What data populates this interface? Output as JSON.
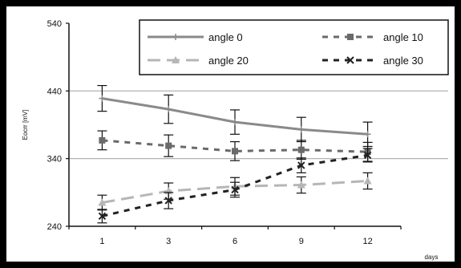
{
  "chart_data": {
    "type": "line",
    "x_categories": [
      "1",
      "3",
      "6",
      "9",
      "12"
    ],
    "xlabel": "days",
    "ylabel": "Eocrr [mV]",
    "y_ticks": [
      "240",
      "340",
      "440",
      "540"
    ],
    "ylim": [
      240,
      540
    ],
    "grid": "horizontal",
    "legend_position": "top-right",
    "series": [
      {
        "name": "angle 0",
        "color": "#8a8a8a",
        "dash": "solid",
        "marker": "plus",
        "values": [
          429,
          413,
          394,
          383,
          376
        ],
        "errors": [
          19,
          21,
          18,
          18,
          18
        ]
      },
      {
        "name": "angle 10",
        "color": "#6a6a6a",
        "dash": "short-dash",
        "marker": "square",
        "values": [
          367,
          359,
          351,
          353,
          350
        ],
        "errors": [
          14,
          16,
          14,
          14,
          14
        ]
      },
      {
        "name": "angle 20",
        "color": "#b6b6b6",
        "dash": "long-dash",
        "marker": "triangle",
        "values": [
          275,
          292,
          299,
          301,
          307
        ],
        "errors": [
          11,
          12,
          13,
          12,
          12
        ]
      },
      {
        "name": "angle 30",
        "color": "#222222",
        "dash": "short-dash",
        "marker": "x",
        "values": [
          255,
          278,
          294,
          330,
          345
        ],
        "errors": [
          10,
          12,
          11,
          11,
          10
        ]
      }
    ]
  }
}
